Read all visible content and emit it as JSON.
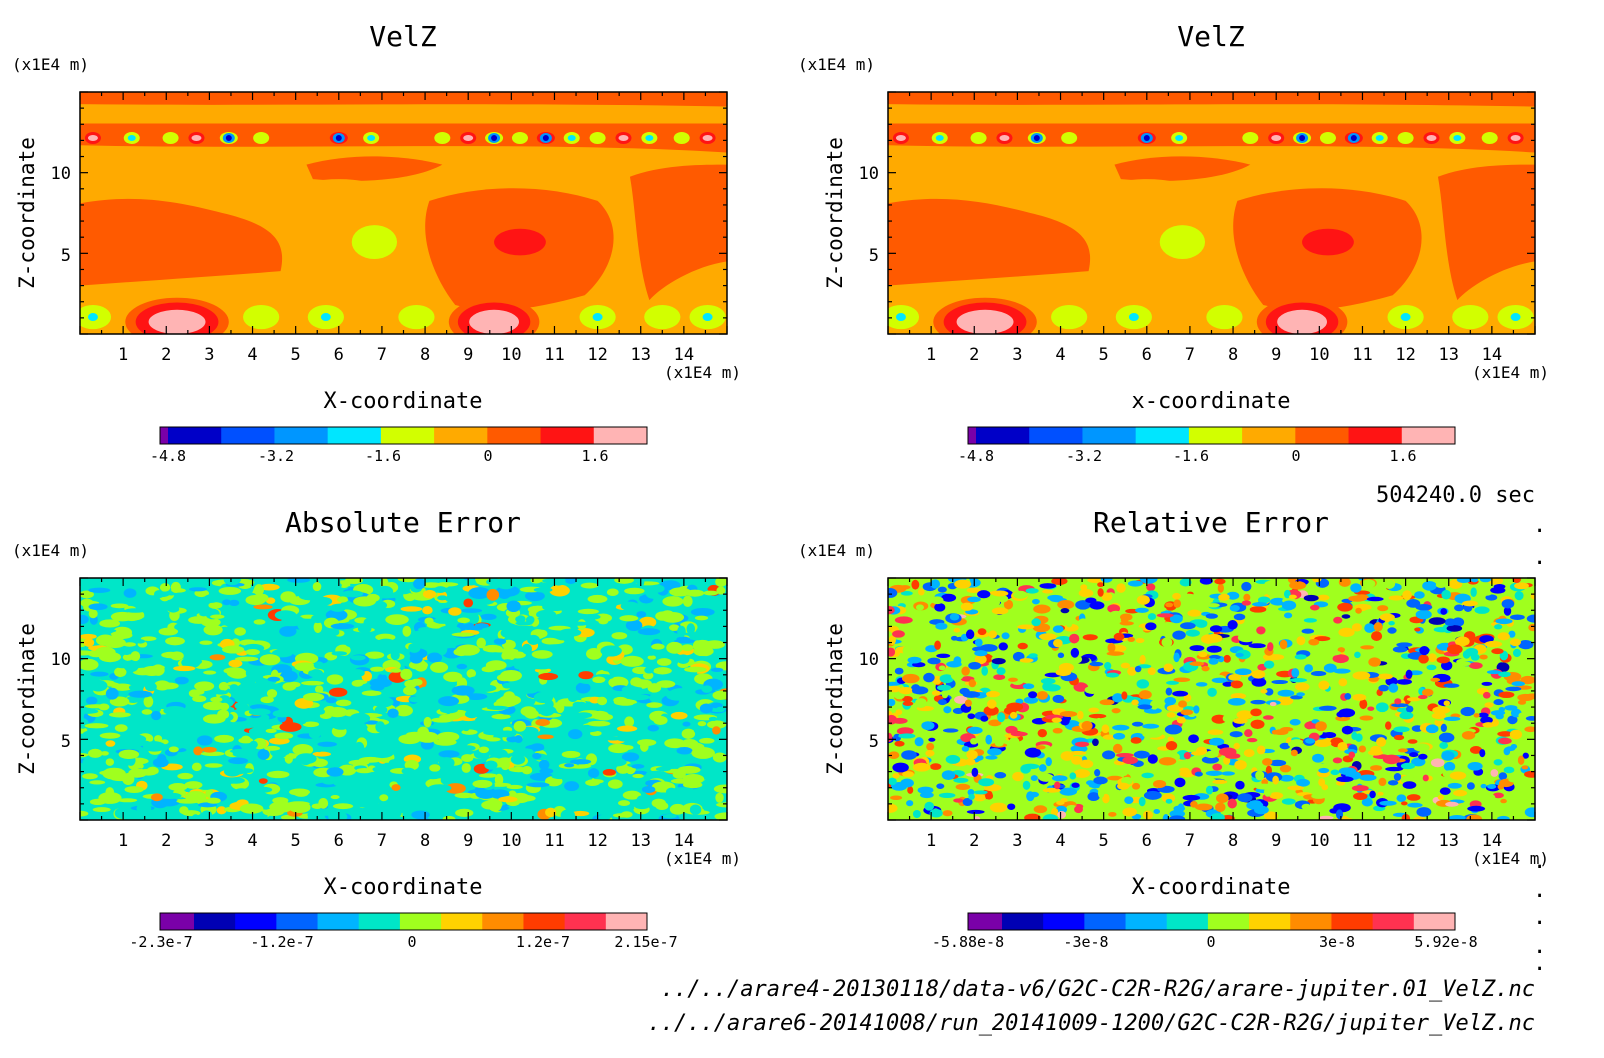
{
  "colors": {
    "background": "#ffffff",
    "velz_levels": [
      "#7a00a8",
      "#0000c8",
      "#0050ff",
      "#0096ff",
      "#00e6ff",
      "#d2ff00",
      "#ffaa00",
      "#ff5a00",
      "#ff1414",
      "#ffb4b4"
    ],
    "error_levels": [
      "#7a00a8",
      "#0000b4",
      "#0000ff",
      "#0064ff",
      "#00b4ff",
      "#00e6c8",
      "#a0ff1e",
      "#ffd200",
      "#ff8c00",
      "#ff3c00",
      "#ff3250",
      "#ffb4b4"
    ]
  },
  "info": {
    "time": "504240.0 sec",
    "dots": [
      ".",
      ".",
      ".",
      ".",
      ".",
      ".",
      "."
    ]
  },
  "files": [
    "../../arare4-20130118/data-v6/G2C-C2R-R2G/arare-jupiter.01_VelZ.nc",
    "../../arare6-20141008/run_20141009-1200/G2C-C2R-R2G/jupiter_VelZ.nc"
  ],
  "chart_data": [
    {
      "type": "heatmap",
      "title": "VelZ",
      "xlabel": "X-coordinate",
      "ylabel": "Z-coordinate",
      "x_unit": "(x1E4 m)",
      "y_unit": "(x1E4 m)",
      "xlim": [
        0,
        15
      ],
      "ylim": [
        0,
        15
      ],
      "xticks": [
        "1",
        "2",
        "3",
        "4",
        "5",
        "6",
        "7",
        "8",
        "9",
        "10",
        "11",
        "12",
        "13",
        "14"
      ],
      "yticks": [
        "5",
        "10"
      ],
      "colorbar_ticks": [
        "-4.8",
        "-3.2",
        "-1.6",
        "0",
        "1.6"
      ]
    },
    {
      "type": "heatmap",
      "title": "VelZ",
      "xlabel": "x-coordinate",
      "ylabel": "Z-coordinate",
      "x_unit": "(x1E4 m)",
      "y_unit": "(x1E4 m)",
      "xlim": [
        0,
        15
      ],
      "ylim": [
        0,
        15
      ],
      "xticks": [
        "1",
        "2",
        "3",
        "4",
        "5",
        "6",
        "7",
        "8",
        "9",
        "10",
        "11",
        "12",
        "13",
        "14"
      ],
      "yticks": [
        "5",
        "10"
      ],
      "colorbar_ticks": [
        "-4.8",
        "-3.2",
        "-1.6",
        "0",
        "1.6"
      ]
    },
    {
      "type": "heatmap",
      "title": "Absolute Error",
      "xlabel": "X-coordinate",
      "ylabel": "Z-coordinate",
      "x_unit": "(x1E4 m)",
      "y_unit": "(x1E4 m)",
      "xlim": [
        0,
        15
      ],
      "ylim": [
        0,
        15
      ],
      "xticks": [
        "1",
        "2",
        "3",
        "4",
        "5",
        "6",
        "7",
        "8",
        "9",
        "10",
        "11",
        "12",
        "13",
        "14"
      ],
      "yticks": [
        "5",
        "10"
      ],
      "colorbar_ticks": [
        "-2.3e-7",
        "-1.2e-7",
        "0",
        "1.2e-7",
        "2.15e-7"
      ]
    },
    {
      "type": "heatmap",
      "title": "Relative Error",
      "xlabel": "X-coordinate",
      "ylabel": "Z-coordinate",
      "x_unit": "(x1E4 m)",
      "y_unit": "(x1E4 m)",
      "xlim": [
        0,
        15
      ],
      "ylim": [
        0,
        15
      ],
      "xticks": [
        "1",
        "2",
        "3",
        "4",
        "5",
        "6",
        "7",
        "8",
        "9",
        "10",
        "11",
        "12",
        "13",
        "14"
      ],
      "yticks": [
        "5",
        "10"
      ],
      "colorbar_ticks": [
        "-5.88e-8",
        "-3e-8",
        "0",
        "3e-8",
        "5.92e-8"
      ]
    }
  ]
}
